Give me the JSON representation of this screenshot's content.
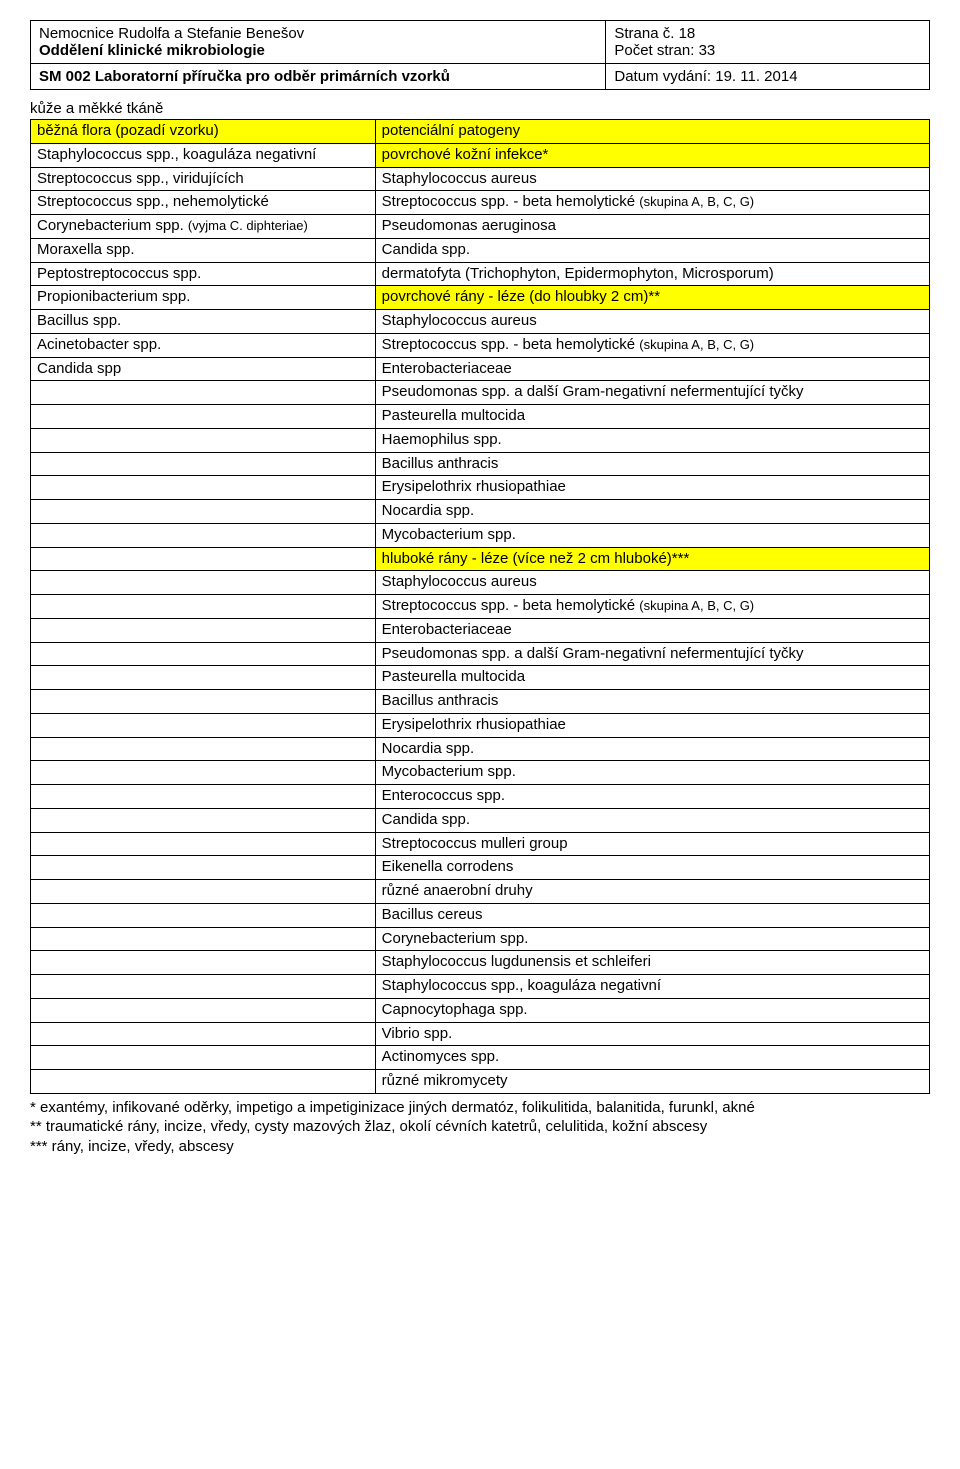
{
  "header": {
    "org_line1": "Nemocnice Rudolfa a Stefanie Benešov",
    "org_line2_bold": "Oddělení klinické mikrobiologie",
    "page_label": "Strana č.",
    "page_number": "18",
    "pages_label": "Počet stran:",
    "pages_total": "33",
    "doc_title_bold": "SM 002 Laboratorní příručka pro odběr primárních vzorků",
    "date_label": "Datum vydání:",
    "date_value": "19. 11. 2014"
  },
  "section_title": "kůže a měkké tkáně",
  "rows": [
    {
      "left": "běžná flora (pozadí vzorku)",
      "right": "potenciální patogeny",
      "hlLeft": true,
      "hlRight": true
    },
    {
      "left": "Staphylococcus spp., koaguláza negativní",
      "right": "povrchové kožní infekce*",
      "hlRight": true
    },
    {
      "left": "Streptococcus spp., viridujících",
      "right": "Staphylococcus aureus"
    },
    {
      "left": "Streptococcus spp., nehemolytické",
      "right": "Streptococcus spp. - beta hemolytické ",
      "rightSmall": "(skupina A, B, C, G)"
    },
    {
      "left": "Corynebacterium spp. ",
      "leftSmall": "(vyjma C. diphteriae)",
      "right": "Pseudomonas aeruginosa"
    },
    {
      "left": "Moraxella spp.",
      "right": "Candida spp."
    },
    {
      "left": "Peptostreptococcus spp.",
      "right": "dermatofyta (Trichophyton, Epidermophyton, Microsporum)"
    },
    {
      "left": "Propionibacterium spp.",
      "right": "povrchové rány - léze (do hloubky 2 cm)**",
      "hlRight": true
    },
    {
      "left": "Bacillus spp.",
      "right": "Staphylococcus aureus"
    },
    {
      "left": "Acinetobacter spp.",
      "right": "Streptococcus spp. - beta hemolytické ",
      "rightSmall": "(skupina A, B, C, G)"
    },
    {
      "left": "Candida spp",
      "right": "Enterobacteriaceae"
    },
    {
      "left": "",
      "right": "Pseudomonas spp. a další Gram-negativní nefermentující tyčky"
    },
    {
      "left": "",
      "right": "Pasteurella multocida"
    },
    {
      "left": "",
      "right": "Haemophilus spp."
    },
    {
      "left": "",
      "right": "Bacillus anthracis"
    },
    {
      "left": "",
      "right": "Erysipelothrix rhusiopathiae"
    },
    {
      "left": "",
      "right": "Nocardia spp."
    },
    {
      "left": "",
      "right": "Mycobacterium spp."
    },
    {
      "left": "",
      "right": "hluboké rány - léze (více než 2 cm hluboké)***",
      "hlRight": true
    },
    {
      "left": "",
      "right": "Staphylococcus aureus"
    },
    {
      "left": "",
      "right": "Streptococcus spp. - beta hemolytické ",
      "rightSmall": "(skupina A, B, C, G)"
    },
    {
      "left": "",
      "right": "Enterobacteriaceae"
    },
    {
      "left": "",
      "right": "Pseudomonas spp. a další Gram-negativní nefermentující tyčky"
    },
    {
      "left": "",
      "right": "Pasteurella multocida"
    },
    {
      "left": "",
      "right": "Bacillus anthracis"
    },
    {
      "left": "",
      "right": "Erysipelothrix rhusiopathiae"
    },
    {
      "left": "",
      "right": "Nocardia spp."
    },
    {
      "left": "",
      "right": "Mycobacterium spp."
    },
    {
      "left": "",
      "right": "Enterococcus spp."
    },
    {
      "left": "",
      "right": "Candida spp."
    },
    {
      "left": "",
      "right": "Streptococcus mulleri group"
    },
    {
      "left": "",
      "right": "Eikenella corrodens"
    },
    {
      "left": "",
      "right": "různé anaerobní druhy"
    },
    {
      "left": "",
      "right": "Bacillus cereus"
    },
    {
      "left": "",
      "right": "Corynebacterium spp."
    },
    {
      "left": "",
      "right": "Staphylococcus lugdunensis et schleiferi"
    },
    {
      "left": "",
      "right": "Staphylococcus spp., koaguláza negativní"
    },
    {
      "left": "",
      "right": "Capnocytophaga spp."
    },
    {
      "left": "",
      "right": "Vibrio spp."
    },
    {
      "left": "",
      "right": "Actinomyces spp."
    },
    {
      "left": "",
      "right": "různé mikromycety"
    }
  ],
  "footnotes": {
    "f1": "* exantémy, infikované oděrky, impetigo a impetiginizace jiných dermatóz, folikulitida, balanitida, furunkl, akné",
    "f2": "** traumatické rány, incize, vředy, cysty mazových žlaz, okolí cévních katetrů, celulitida, kožní abscesy",
    "f3": "*** rány, incize, vředy, abscesy"
  },
  "colors": {
    "highlight": "#ffff00",
    "border": "#000000",
    "text": "#000000",
    "background": "#ffffff"
  }
}
